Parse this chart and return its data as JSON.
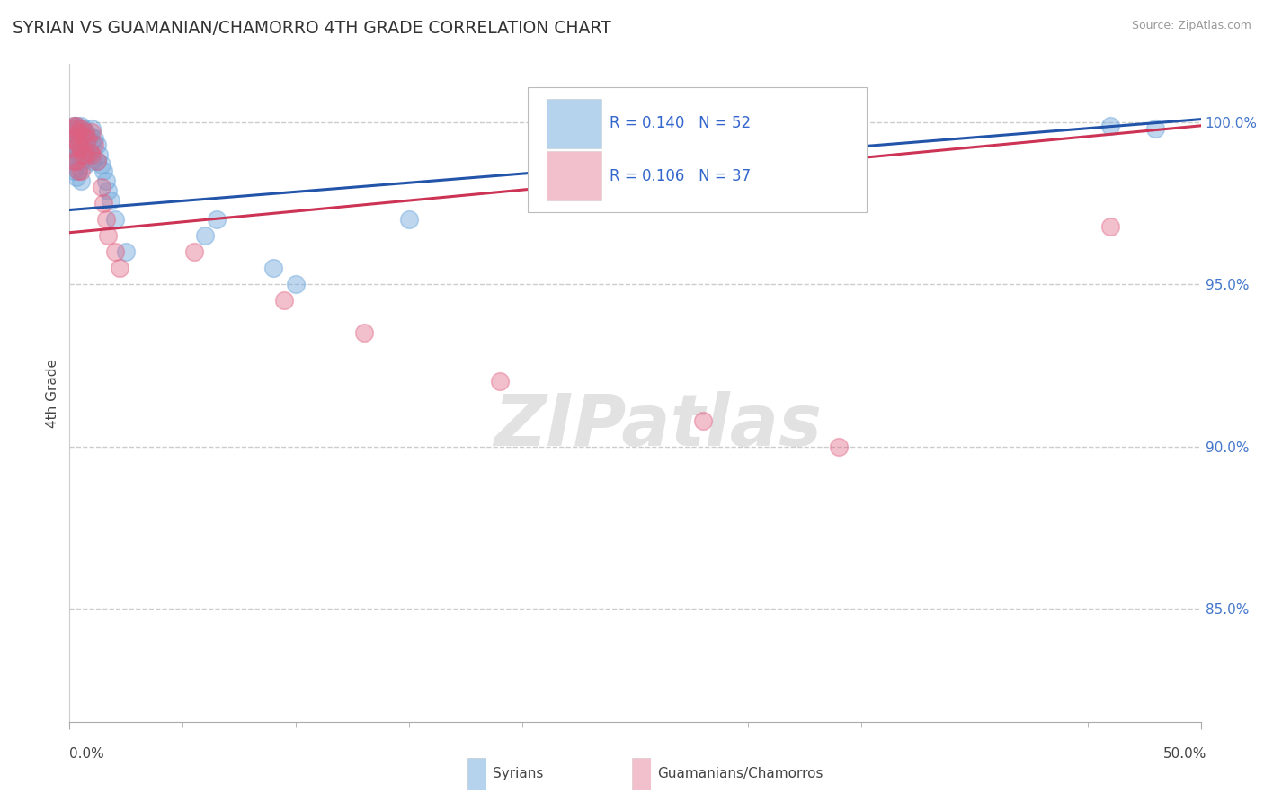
{
  "title": "SYRIAN VS GUAMANIAN/CHAMORRO 4TH GRADE CORRELATION CHART",
  "ylabel": "4th Grade",
  "source": "Source: ZipAtlas.com",
  "ylabels": [
    "100.0%",
    "95.0%",
    "90.0%",
    "85.0%"
  ],
  "yvals": [
    1.0,
    0.95,
    0.9,
    0.85
  ],
  "xlim": [
    0.0,
    0.5
  ],
  "ylim": [
    0.815,
    1.018
  ],
  "syrians_R": 0.14,
  "syrians_N": 52,
  "guamanians_R": 0.106,
  "guamanians_N": 37,
  "syrian_color": "#6fa8dc",
  "guamanian_color": "#e06080",
  "syrian_line_color": "#2255aa",
  "guamanian_line_color": "#cc3355",
  "syrian_line_y0": 0.973,
  "syrian_line_y1": 1.001,
  "guamanian_line_y0": 0.966,
  "guamanian_line_y1": 0.999,
  "syrians_x": [
    0.001,
    0.001,
    0.001,
    0.002,
    0.002,
    0.002,
    0.002,
    0.003,
    0.003,
    0.003,
    0.003,
    0.003,
    0.004,
    0.004,
    0.004,
    0.004,
    0.005,
    0.005,
    0.005,
    0.005,
    0.005,
    0.006,
    0.006,
    0.006,
    0.007,
    0.007,
    0.007,
    0.008,
    0.008,
    0.009,
    0.009,
    0.01,
    0.01,
    0.01,
    0.011,
    0.012,
    0.012,
    0.013,
    0.014,
    0.015,
    0.016,
    0.017,
    0.018,
    0.02,
    0.025,
    0.06,
    0.065,
    0.09,
    0.1,
    0.15,
    0.46,
    0.48
  ],
  "syrians_y": [
    0.998,
    0.993,
    0.988,
    0.999,
    0.995,
    0.99,
    0.985,
    0.999,
    0.996,
    0.992,
    0.988,
    0.983,
    0.998,
    0.994,
    0.99,
    0.985,
    0.999,
    0.996,
    0.993,
    0.988,
    0.982,
    0.998,
    0.994,
    0.988,
    0.997,
    0.993,
    0.987,
    0.995,
    0.99,
    0.996,
    0.991,
    0.998,
    0.994,
    0.988,
    0.995,
    0.993,
    0.988,
    0.99,
    0.987,
    0.985,
    0.982,
    0.979,
    0.976,
    0.97,
    0.96,
    0.965,
    0.97,
    0.955,
    0.95,
    0.97,
    0.999,
    0.998
  ],
  "guamanians_x": [
    0.001,
    0.001,
    0.002,
    0.002,
    0.002,
    0.003,
    0.003,
    0.003,
    0.004,
    0.004,
    0.004,
    0.005,
    0.005,
    0.005,
    0.006,
    0.006,
    0.007,
    0.007,
    0.008,
    0.009,
    0.01,
    0.01,
    0.011,
    0.012,
    0.014,
    0.015,
    0.016,
    0.017,
    0.02,
    0.022,
    0.055,
    0.095,
    0.13,
    0.19,
    0.28,
    0.34,
    0.46
  ],
  "guamanians_y": [
    0.998,
    0.992,
    0.999,
    0.995,
    0.988,
    0.999,
    0.994,
    0.988,
    0.997,
    0.993,
    0.985,
    0.998,
    0.992,
    0.985,
    0.996,
    0.99,
    0.997,
    0.99,
    0.995,
    0.991,
    0.997,
    0.99,
    0.993,
    0.988,
    0.98,
    0.975,
    0.97,
    0.965,
    0.96,
    0.955,
    0.96,
    0.945,
    0.935,
    0.92,
    0.908,
    0.9,
    0.968
  ]
}
